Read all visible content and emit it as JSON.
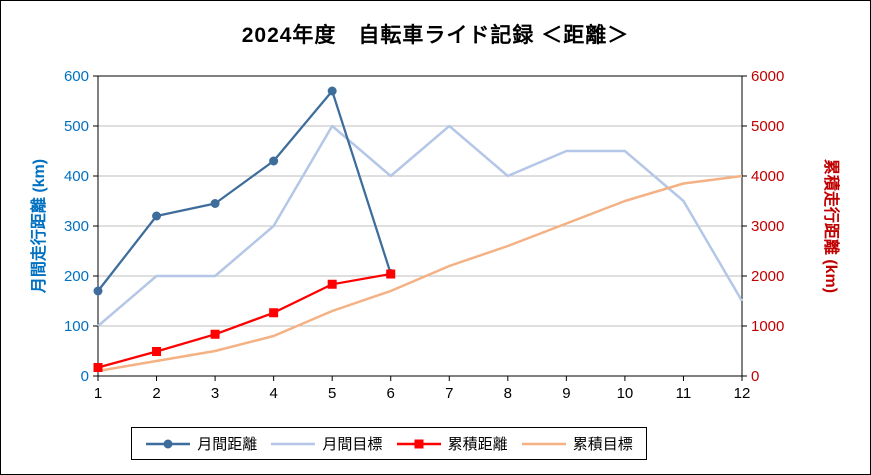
{
  "chart_data": {
    "type": "line",
    "title": "2024年度　自転車ライド記録 ＜距離＞",
    "x": [
      1,
      2,
      3,
      4,
      5,
      6,
      7,
      8,
      9,
      10,
      11,
      12
    ],
    "left_axis": {
      "label": "月間走行距離 (km)",
      "min": 0,
      "max": 600,
      "step": 100,
      "color": "#0070C0"
    },
    "right_axis": {
      "label": "累積走行距離 (km)",
      "min": 0,
      "max": 6000,
      "step": 1000,
      "color": "#C00000"
    },
    "grid": "horizontal",
    "legend_position": "bottom",
    "series": [
      {
        "name": "月間距離",
        "axis": "left",
        "color": "#3E6D9C",
        "marker": "circle",
        "values": [
          170,
          320,
          345,
          430,
          570,
          205
        ]
      },
      {
        "name": "月間目標",
        "axis": "left",
        "color": "#B4C7E7",
        "marker": "none",
        "values": [
          100,
          200,
          200,
          300,
          500,
          400,
          500,
          400,
          450,
          450,
          350,
          150
        ]
      },
      {
        "name": "累積距離",
        "axis": "right",
        "color": "#FF0000",
        "marker": "square",
        "values": [
          170,
          490,
          835,
          1265,
          1835,
          2040
        ]
      },
      {
        "name": "累積目標",
        "axis": "right",
        "color": "#F4B183",
        "marker": "none",
        "values": [
          100,
          300,
          500,
          800,
          1300,
          1700,
          2200,
          2600,
          3050,
          3500,
          3850,
          4000
        ]
      }
    ]
  }
}
